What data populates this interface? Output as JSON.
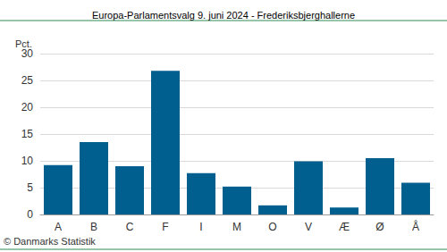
{
  "chart_data": {
    "type": "bar",
    "title": "Europa-Parlamentsvalg 9. juni 2024 - Frederiksbjerghallerne",
    "y_label": "Pct.",
    "source": "© Danmarks Statistik",
    "categories": [
      "A",
      "B",
      "C",
      "F",
      "I",
      "M",
      "O",
      "V",
      "Æ",
      "Ø",
      "Å"
    ],
    "values": [
      9.2,
      13.5,
      9.0,
      26.8,
      7.7,
      5.2,
      1.7,
      9.9,
      1.3,
      10.5,
      5.9
    ],
    "color": "#005f8f",
    "ylim": [
      0,
      30
    ],
    "yticks": [
      0,
      5,
      10,
      15,
      20,
      25,
      30
    ],
    "grid": true
  }
}
